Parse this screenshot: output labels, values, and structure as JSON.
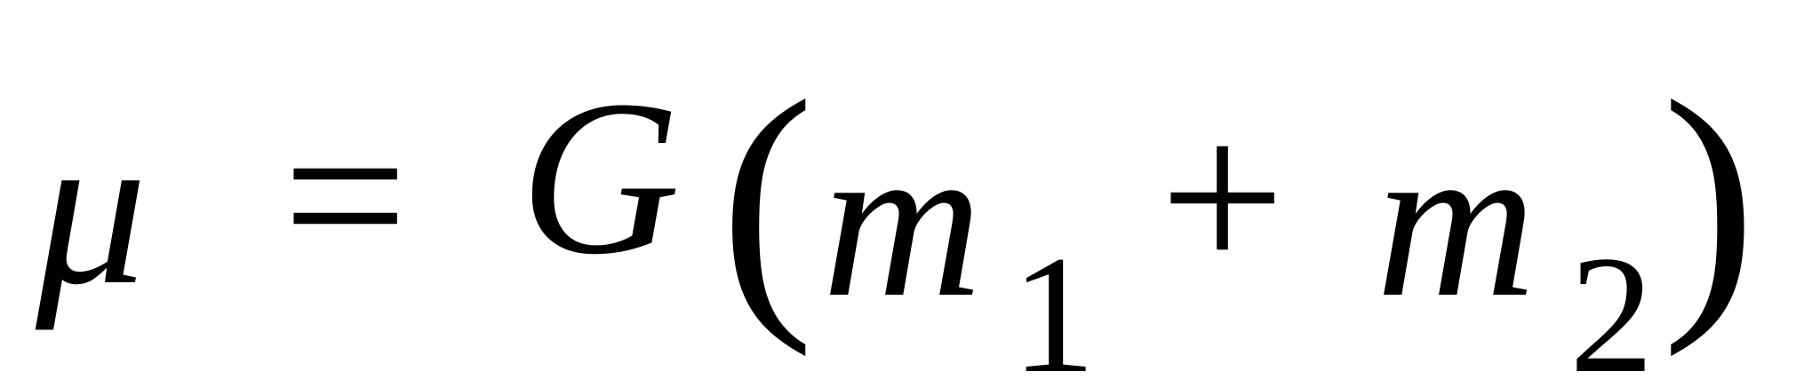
{
  "equation": {
    "mu": "μ",
    "equals": "=",
    "G": "G",
    "lparen": "(",
    "m1_base": "m",
    "m1_sub": "1",
    "plus": "+",
    "m2_base": "m",
    "m2_sub": "2",
    "rparen": ")"
  }
}
